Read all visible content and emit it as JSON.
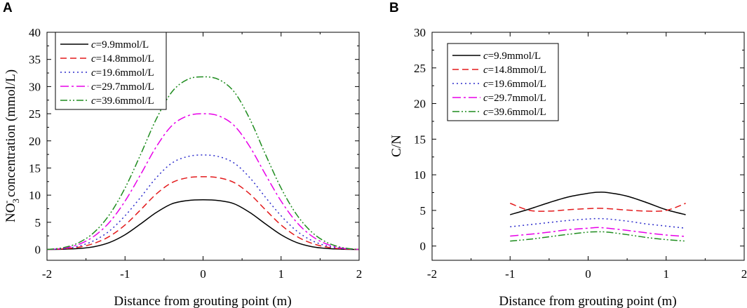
{
  "chart_data": [
    {
      "panel": "A",
      "type": "line",
      "title": "",
      "xlabel": "Distance from grouting point  (m)",
      "ylabel_prefix": "NO",
      "ylabel_sub": "3",
      "ylabel_sup": "-",
      "ylabel_suffix": " concentration (mmol/L)",
      "xlim": [
        -2,
        2
      ],
      "ylim": [
        -2,
        40
      ],
      "xticks": [
        -2,
        -1,
        0,
        1,
        2
      ],
      "xtick_labels": [
        "-2",
        "-1",
        "0",
        "1",
        "2"
      ],
      "yticks": [
        0,
        5,
        10,
        15,
        20,
        25,
        30,
        35,
        40
      ],
      "ytick_labels": [
        "0",
        "5",
        "10",
        "15",
        "20",
        "25",
        "30",
        "35",
        "40"
      ],
      "legend_position": "top-left",
      "x": [
        -2.0,
        -1.8,
        -1.6,
        -1.4,
        -1.2,
        -1.0,
        -0.8,
        -0.6,
        -0.4,
        -0.2,
        0.0,
        0.2,
        0.4,
        0.6,
        0.8,
        1.0,
        1.2,
        1.4,
        1.6,
        1.8,
        2.0
      ],
      "series": [
        {
          "name_italic": "c",
          "name_rest": "=9.9mmol/L",
          "color": "#000000",
          "dash": "",
          "values": [
            0.0,
            0.04,
            0.16,
            0.49,
            1.27,
            2.7,
            4.7,
            6.8,
            8.4,
            9.0,
            9.15,
            9.0,
            8.4,
            6.8,
            4.7,
            2.7,
            1.27,
            0.49,
            0.16,
            0.04,
            0.0
          ]
        },
        {
          "name_italic": "c",
          "name_rest": "=14.8mmol/L",
          "color": "#e31a1c",
          "dash": "9,5",
          "values": [
            0.0,
            0.1,
            0.4,
            1.1,
            2.4,
            4.5,
            7.3,
            10.2,
            12.3,
            13.2,
            13.4,
            13.2,
            12.3,
            10.2,
            7.3,
            4.5,
            2.4,
            1.1,
            0.4,
            0.1,
            0.0
          ]
        },
        {
          "name_italic": "c",
          "name_rest": "=19.6mmol/L",
          "color": "#2c2ccc",
          "dash": "2,4",
          "values": [
            0.0,
            0.14,
            0.6,
            1.6,
            3.4,
            6.2,
            9.6,
            13.2,
            15.9,
            17.1,
            17.4,
            17.1,
            15.9,
            13.2,
            9.6,
            6.2,
            3.4,
            1.6,
            0.6,
            0.14,
            0.0
          ]
        },
        {
          "name_italic": "c",
          "name_rest": "=29.7mmol/L",
          "color": "#e800e8",
          "dash": "12,4,3,4",
          "values": [
            0.0,
            0.2,
            0.9,
            2.4,
            5.0,
            8.9,
            13.8,
            18.9,
            22.8,
            24.6,
            25.0,
            24.6,
            22.8,
            18.9,
            13.8,
            8.9,
            5.0,
            2.4,
            0.9,
            0.2,
            0.0
          ]
        },
        {
          "name_italic": "c",
          "name_rest": "=39.6mmol/L",
          "color": "#1e8c1e",
          "dash": "10,3,2,3,2,3",
          "values": [
            0.0,
            0.3,
            1.2,
            3.1,
            6.4,
            11.3,
            17.5,
            24.0,
            29.0,
            31.3,
            31.8,
            31.3,
            29.0,
            24.0,
            17.5,
            11.3,
            6.4,
            3.1,
            1.2,
            0.3,
            0.0
          ]
        }
      ]
    },
    {
      "panel": "B",
      "type": "line",
      "title": "",
      "xlabel": "Distance from grouting point  (m)",
      "ylabel": "C/N",
      "xlim": [
        -2,
        2
      ],
      "ylim": [
        -2,
        30
      ],
      "xticks": [
        -2,
        -1,
        0,
        1,
        2
      ],
      "xtick_labels": [
        "-2",
        "-1",
        "0",
        "1",
        "2"
      ],
      "yticks": [
        0,
        5,
        10,
        15,
        20,
        25,
        30
      ],
      "ytick_labels": [
        "0",
        "5",
        "10",
        "15",
        "20",
        "25",
        "30"
      ],
      "legend_position": "top-left",
      "x": [
        -1.0,
        -0.75,
        -0.5,
        -0.25,
        0.0,
        0.125,
        0.25,
        0.5,
        0.75,
        1.0,
        1.25
      ],
      "series": [
        {
          "name_italic": "c",
          "name_rest": "=9.9mmol/L",
          "color": "#000000",
          "dash": "",
          "values": [
            4.4,
            5.2,
            6.1,
            6.9,
            7.4,
            7.55,
            7.5,
            7.0,
            6.1,
            5.1,
            4.4
          ]
        },
        {
          "name_italic": "c",
          "name_rest": "=14.8mmol/L",
          "color": "#e31a1c",
          "dash": "9,5",
          "values": [
            6.0,
            5.0,
            4.9,
            5.1,
            5.25,
            5.3,
            5.25,
            5.05,
            4.9,
            5.0,
            6.0
          ]
        },
        {
          "name_italic": "c",
          "name_rest": "=19.6mmol/L",
          "color": "#2c2ccc",
          "dash": "2,4",
          "values": [
            2.7,
            3.0,
            3.3,
            3.6,
            3.8,
            3.85,
            3.8,
            3.5,
            3.1,
            2.8,
            2.5
          ]
        },
        {
          "name_italic": "c",
          "name_rest": "=29.7mmol/L",
          "color": "#e800e8",
          "dash": "12,4,3,4",
          "values": [
            1.4,
            1.65,
            1.95,
            2.3,
            2.5,
            2.6,
            2.5,
            2.2,
            1.85,
            1.55,
            1.35
          ]
        },
        {
          "name_italic": "c",
          "name_rest": "=39.6mmol/L",
          "color": "#1e8c1e",
          "dash": "10,3,2,3,2,3",
          "values": [
            0.7,
            0.95,
            1.3,
            1.65,
            1.95,
            2.0,
            1.95,
            1.6,
            1.2,
            0.9,
            0.7
          ]
        }
      ]
    }
  ]
}
